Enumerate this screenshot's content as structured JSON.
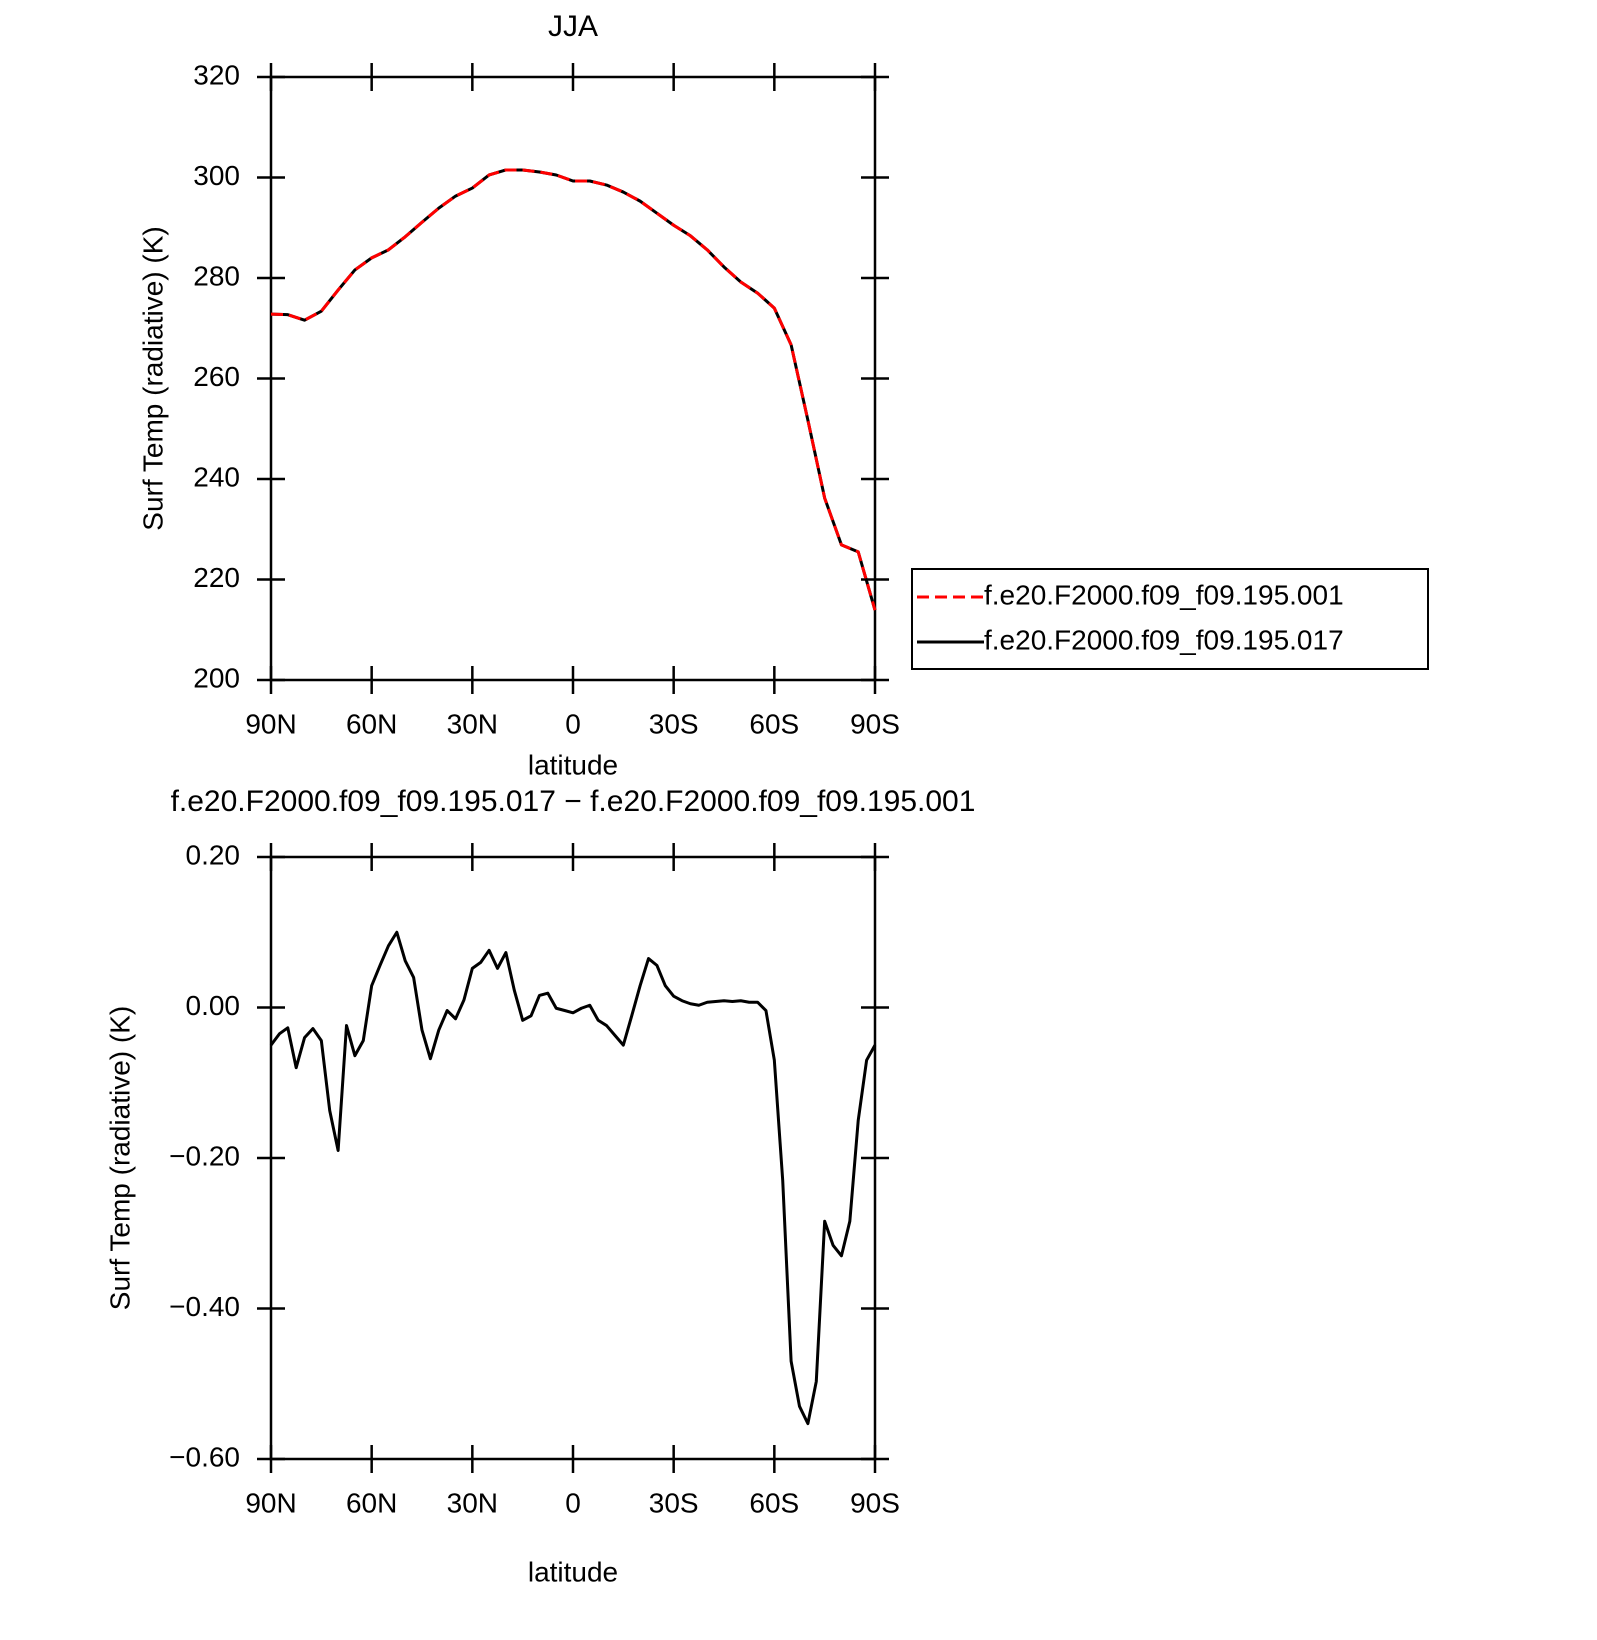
{
  "chart_data": [
    {
      "type": "line",
      "title": "JJA",
      "xlabel": "latitude",
      "ylabel": "Surf Temp (radiative) (K)",
      "x": [
        90,
        85,
        80,
        75,
        70,
        65,
        60,
        55,
        50,
        45,
        40,
        35,
        30,
        25,
        20,
        15,
        10,
        5,
        0,
        -5,
        -10,
        -15,
        -20,
        -25,
        -30,
        -35,
        -40,
        -45,
        -50,
        -55,
        -60,
        -65,
        -70,
        -75,
        -80,
        -85,
        -90
      ],
      "series": [
        {
          "name": "f.e20.F2000.f09_f09.195.001",
          "color": "#ff0000",
          "dash": true,
          "values": [
            272.8,
            272.7,
            271.6,
            273.4,
            277.6,
            281.6,
            284,
            285.6,
            288.2,
            291.1,
            293.9,
            296.3,
            297.9,
            300.5,
            301.5,
            301.5,
            301.1,
            300.5,
            299.3,
            299.3,
            298.5,
            297.1,
            295.3,
            292.9,
            290.5,
            288.4,
            285.6,
            282.2,
            279.2,
            277.0,
            274,
            266.7,
            251.7,
            236.2,
            226.9,
            225.5,
            213.9
          ]
        },
        {
          "name": "f.e20.F2000.f09_f09.195.017",
          "color": "#000000",
          "dash": false,
          "values": [
            272.8,
            272.7,
            271.6,
            273.4,
            277.6,
            281.6,
            284,
            285.6,
            288.2,
            291.1,
            293.9,
            296.3,
            297.9,
            300.5,
            301.5,
            301.5,
            301.1,
            300.5,
            299.3,
            299.3,
            298.5,
            297.1,
            295.3,
            292.9,
            290.5,
            288.4,
            285.6,
            282.2,
            279.2,
            277.0,
            274,
            266.7,
            251.7,
            236.2,
            226.9,
            225.5,
            213.9
          ]
        }
      ],
      "xlim": [
        90,
        -90
      ],
      "xticks": [
        {
          "value": 90,
          "label": "90N"
        },
        {
          "value": 60,
          "label": "60N"
        },
        {
          "value": 30,
          "label": "30N"
        },
        0,
        {
          "value": -30,
          "label": "30S"
        },
        {
          "value": -60,
          "label": "60S"
        },
        {
          "value": -90,
          "label": "90S"
        }
      ],
      "ylim": [
        200,
        320
      ],
      "yticks": [
        200,
        220,
        240,
        260,
        280,
        300,
        320
      ],
      "legend": "right"
    },
    {
      "type": "line",
      "title": "f.e20.F2000.f09_f09.195.017 − f.e20.F2000.f09_f09.195.001",
      "xlabel": "latitude",
      "ylabel": "Surf Temp (radiative) (K)",
      "x": [
        90,
        87.5,
        85,
        82.5,
        80,
        77.5,
        75,
        72.5,
        70,
        67.5,
        65,
        62.5,
        60,
        57.5,
        55,
        52.5,
        50,
        47.5,
        45,
        42.5,
        40,
        37.5,
        35,
        32.5,
        30,
        27.5,
        25,
        22.5,
        20,
        17.5,
        15,
        12.5,
        10,
        7.5,
        5,
        2.5,
        0,
        -2.5,
        -5,
        -7.5,
        -10,
        -12.5,
        -15,
        -17.5,
        -20,
        -22.5,
        -25,
        -27.5,
        -30,
        -32.5,
        -35,
        -37.5,
        -40,
        -42.5,
        -45,
        -47.5,
        -50,
        -52.5,
        -55,
        -57.5,
        -60,
        -62.5,
        -65,
        -67.5,
        -70,
        -72.5,
        -75,
        -77.5,
        -80,
        -82.5,
        -85,
        -87.5,
        -90
      ],
      "series": [
        {
          "color": "#000000",
          "dash": false,
          "values": [
            -0.05,
            -0.035,
            -0.027,
            -0.08,
            -0.04,
            -0.028,
            -0.044,
            -0.137,
            -0.19,
            -0.024,
            -0.064,
            -0.044,
            0.029,
            0.056,
            0.082,
            0.1,
            0.062,
            0.04,
            -0.03,
            -0.068,
            -0.03,
            -0.004,
            -0.015,
            0.01,
            0.052,
            0.06,
            0.076,
            0.052,
            0.073,
            0.023,
            -0.017,
            -0.011,
            0.016,
            0.019,
            -0.001,
            -0.004,
            -0.007,
            -0.001,
            0.003,
            -0.017,
            -0.024,
            -0.037,
            -0.05,
            -0.011,
            0.029,
            0.065,
            0.056,
            0.029,
            0.015,
            0.009,
            0.005,
            0.003,
            0.007,
            0.008,
            0.009,
            0.008,
            0.009,
            0.007,
            0.007,
            -0.004,
            -0.07,
            -0.23,
            -0.47,
            -0.53,
            -0.553,
            -0.497,
            -0.284,
            -0.316,
            -0.33,
            -0.284,
            -0.15,
            -0.07,
            -0.05
          ]
        }
      ],
      "xlim": [
        90,
        -90
      ],
      "xticks": [
        {
          "value": 90,
          "label": "90N"
        },
        {
          "value": 60,
          "label": "60N"
        },
        {
          "value": 30,
          "label": "30N"
        },
        0,
        {
          "value": -30,
          "label": "30S"
        },
        {
          "value": -60,
          "label": "60S"
        },
        {
          "value": -90,
          "label": "90S"
        }
      ],
      "ylim": [
        -0.6,
        0.2
      ],
      "yticks": [
        {
          "value": -0.6,
          "label": "−0.60"
        },
        {
          "value": -0.4,
          "label": "−0.40"
        },
        {
          "value": -0.2,
          "label": "−0.20"
        },
        {
          "value": 0,
          "label": "0.00"
        },
        {
          "value": 0.2,
          "label": "0.20"
        }
      ]
    }
  ]
}
